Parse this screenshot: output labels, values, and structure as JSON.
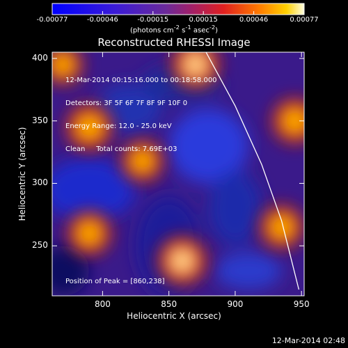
{
  "colorbar": {
    "ticks": [
      "-0.00077",
      "-0.00046",
      "-0.00015",
      "0.00015",
      "0.00046",
      "0.00077"
    ],
    "unit_html": "(photons cm<sup>-2</sup> s<sup>-1</sup> asec<sup>-2</sup>)"
  },
  "title": "Reconstructed RHESSI Image",
  "annotations": {
    "time": "12-Mar-2014 00:15:16.000 to 00:18:58.000",
    "detectors": "Detectors: 3F 5F 6F 7F 8F 9F 10F 0",
    "energy": "Energy Range: 12.0 - 25.0 keV",
    "clean": "Clean     Total counts: 7.69E+03",
    "peak": "Position of Peak = [860,238]"
  },
  "footer": "12-Mar-2014 02:48",
  "chart_data": {
    "type": "heatmap",
    "title": "Reconstructed RHESSI Image",
    "xlabel": "Heliocentric X (arcsec)",
    "ylabel": "Heliocentric Y (arcsec)",
    "xlim": [
      762,
      952
    ],
    "ylim": [
      210,
      405
    ],
    "xticks": [
      800,
      850,
      900,
      950
    ],
    "yticks": [
      250,
      300,
      350,
      400
    ],
    "colorbar_range": [
      -0.00077,
      0.00077
    ],
    "peak_position": [
      860,
      238
    ],
    "sources": [
      {
        "x": 860,
        "y": 238,
        "strength": 1.0
      },
      {
        "x": 870,
        "y": 395,
        "strength": 0.95
      },
      {
        "x": 790,
        "y": 345,
        "strength": 0.85
      },
      {
        "x": 830,
        "y": 318,
        "strength": 0.6
      },
      {
        "x": 945,
        "y": 350,
        "strength": 0.8
      },
      {
        "x": 790,
        "y": 260,
        "strength": 0.7
      },
      {
        "x": 935,
        "y": 265,
        "strength": 0.7
      },
      {
        "x": 770,
        "y": 395,
        "strength": 0.5
      }
    ],
    "limb_curve": [
      [
        878,
        405
      ],
      [
        900,
        362
      ],
      [
        920,
        315
      ],
      [
        935,
        270
      ],
      [
        948,
        215
      ]
    ]
  }
}
